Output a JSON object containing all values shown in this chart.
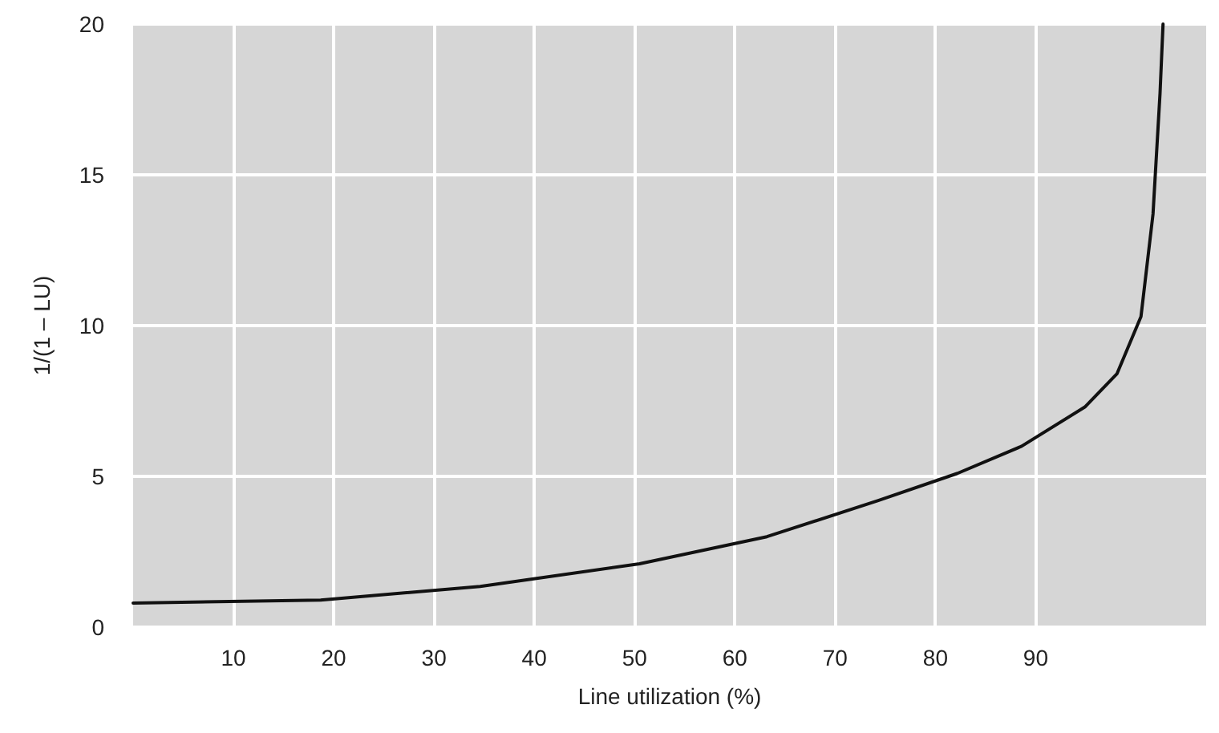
{
  "chart_data": {
    "type": "line",
    "xlabel": "Line utilization (%)",
    "ylabel": "1/(1 – LU)",
    "x": [
      0,
      18.7,
      34.6,
      50.5,
      63.2,
      74.3,
      82.2,
      88.6,
      94.9,
      98.1,
      100.5,
      101.7,
      102.4,
      102.7
    ],
    "series": [
      {
        "color": "#111111",
        "values": [
          0.8,
          0.9,
          1.35,
          2.1,
          3.0,
          4.2,
          5.1,
          6.0,
          7.3,
          8.4,
          10.3,
          13.7,
          17.7,
          20
        ]
      }
    ],
    "xlim": [
      0,
      107
    ],
    "xticks": [
      10,
      20,
      30,
      40,
      50,
      60,
      70,
      80,
      90
    ],
    "ylim": [
      0,
      20
    ],
    "yticks": [
      0,
      5,
      10,
      15,
      20
    ],
    "grid": true,
    "marker": "none",
    "line_style": "solid"
  }
}
